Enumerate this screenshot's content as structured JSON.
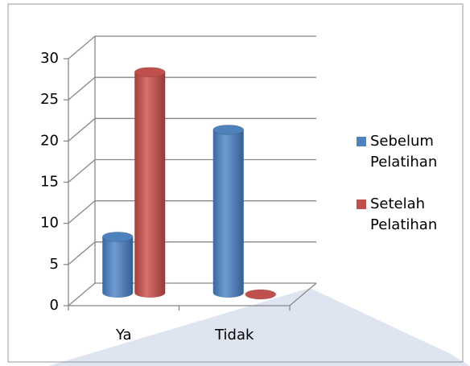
{
  "chart_data": {
    "type": "bar3d",
    "categories": [
      "Ya",
      "Tidak"
    ],
    "series": [
      {
        "name": "Sebelum Pelatihan",
        "color": "#4f81bd",
        "values": [
          7,
          20
        ]
      },
      {
        "name": "Setelah Pelatihan",
        "color": "#c0504d",
        "values": [
          27,
          0
        ]
      }
    ],
    "ylim": [
      0,
      30
    ],
    "yticks": [
      0,
      5,
      10,
      15,
      20,
      25,
      30
    ],
    "grid": true,
    "legend": "right"
  }
}
